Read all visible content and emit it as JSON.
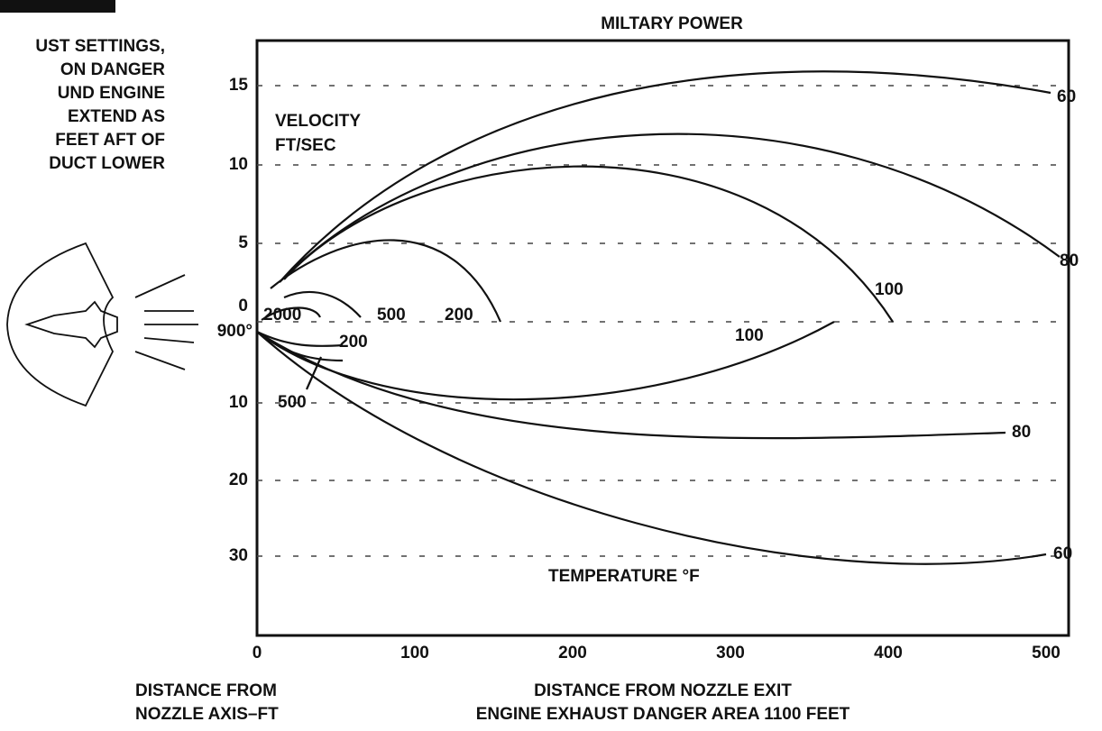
{
  "header": {
    "title": "MILTARY POWER"
  },
  "side_text": {
    "lines": [
      "UST SETTINGS,",
      "ON DANGER",
      "UND ENGINE",
      "EXTEND AS",
      "FEET AFT OF",
      "DUCT LOWER"
    ]
  },
  "axes": {
    "y_upper_ticks": [
      "15",
      "10",
      "5",
      "0"
    ],
    "y_lower_ticks": [
      "10",
      "20",
      "30"
    ],
    "origin_label": "900°",
    "x_ticks": [
      "0",
      "100",
      "200",
      "300",
      "400",
      "500"
    ],
    "y_title": "DISTANCE FROM\nNOZZLE AXIS–FT",
    "x_title": "DISTANCE FROM NOZZLE EXIT",
    "footer": "ENGINE EXHAUST DANGER AREA 1100 FEET"
  },
  "velocity": {
    "title": [
      "VELOCITY",
      "FT/SEC"
    ],
    "labels": [
      "60",
      "80",
      "100",
      "200",
      "500",
      "2000"
    ]
  },
  "temperature": {
    "title": "TEMPERATURE °F",
    "labels": [
      "100",
      "80",
      "60",
      "200",
      "500"
    ]
  }
}
